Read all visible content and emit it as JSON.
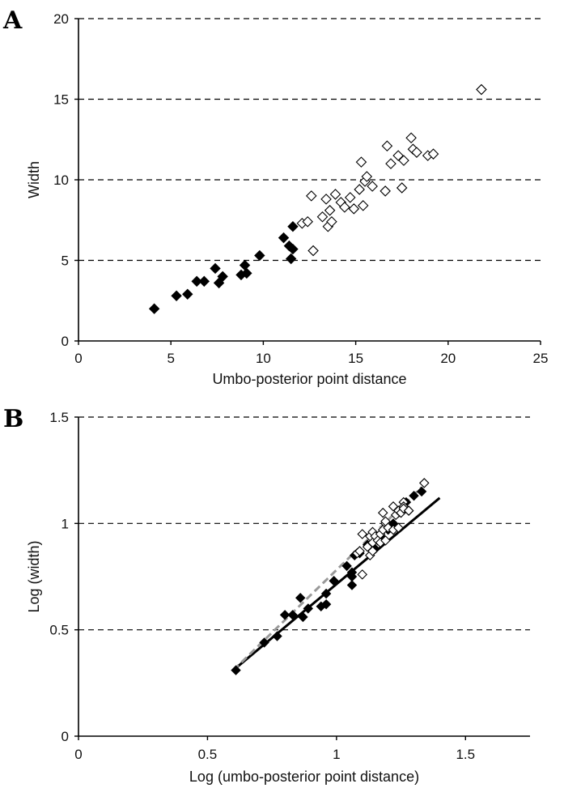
{
  "panels": {
    "a_letter": "A",
    "b_letter": "B"
  },
  "colors": {
    "filled": "#000000",
    "open": "#ffffff",
    "grid": "#000000",
    "fit_solid": "#000000",
    "fit_dashed": "#999999"
  },
  "chart_data": [
    {
      "type": "scatter",
      "panel": "A",
      "xlabel": "Umbo-posterior point distance",
      "ylabel": "Width",
      "xlim": [
        0,
        25
      ],
      "ylim": [
        0,
        20
      ],
      "xticks": [
        0,
        5,
        10,
        15,
        20,
        25
      ],
      "yticks": [
        0,
        5,
        10,
        15,
        20
      ],
      "grid": "horizontal dashed",
      "series": [
        {
          "marker": "filled-diamond",
          "points": [
            [
              4.1,
              2.0
            ],
            [
              5.3,
              2.8
            ],
            [
              5.9,
              2.9
            ],
            [
              6.4,
              3.7
            ],
            [
              6.8,
              3.7
            ],
            [
              7.4,
              4.5
            ],
            [
              7.6,
              3.6
            ],
            [
              7.8,
              4.0
            ],
            [
              8.8,
              4.1
            ],
            [
              9.0,
              4.7
            ],
            [
              9.1,
              4.2
            ],
            [
              9.8,
              5.3
            ],
            [
              11.1,
              6.4
            ],
            [
              11.4,
              5.9
            ],
            [
              11.5,
              5.1
            ],
            [
              11.6,
              5.7
            ],
            [
              11.6,
              7.1
            ]
          ]
        },
        {
          "marker": "open-diamond",
          "points": [
            [
              12.1,
              7.3
            ],
            [
              12.4,
              7.4
            ],
            [
              12.6,
              9.0
            ],
            [
              12.7,
              5.6
            ],
            [
              13.2,
              7.7
            ],
            [
              13.4,
              8.8
            ],
            [
              13.5,
              7.1
            ],
            [
              13.6,
              8.1
            ],
            [
              13.7,
              7.4
            ],
            [
              13.9,
              9.1
            ],
            [
              14.2,
              8.6
            ],
            [
              14.4,
              8.3
            ],
            [
              14.7,
              8.9
            ],
            [
              14.9,
              8.2
            ],
            [
              15.2,
              9.4
            ],
            [
              15.3,
              11.1
            ],
            [
              15.4,
              8.4
            ],
            [
              15.5,
              9.9
            ],
            [
              15.6,
              10.2
            ],
            [
              15.9,
              9.6
            ],
            [
              16.6,
              9.3
            ],
            [
              16.7,
              12.1
            ],
            [
              16.9,
              11.0
            ],
            [
              17.3,
              11.5
            ],
            [
              17.5,
              9.5
            ],
            [
              17.6,
              11.2
            ],
            [
              18.0,
              12.6
            ],
            [
              18.1,
              11.9
            ],
            [
              18.3,
              11.7
            ],
            [
              18.9,
              11.5
            ],
            [
              19.2,
              11.6
            ],
            [
              21.8,
              15.6
            ]
          ]
        }
      ]
    },
    {
      "type": "scatter",
      "panel": "B",
      "xlabel": "Log (umbo-posterior point distance)",
      "ylabel": "Log (width)",
      "xlim": [
        0,
        1.75
      ],
      "ylim": [
        0,
        1.5
      ],
      "xticks": [
        "0",
        "0.5",
        "1",
        "1.5"
      ],
      "yticks": [
        "0",
        "0.5",
        "1",
        "1.5"
      ],
      "grid": "horizontal dashed",
      "series": [
        {
          "marker": "filled-diamond",
          "points": [
            [
              0.61,
              0.31
            ],
            [
              0.72,
              0.44
            ],
            [
              0.77,
              0.47
            ],
            [
              0.8,
              0.57
            ],
            [
              0.83,
              0.57
            ],
            [
              0.86,
              0.65
            ],
            [
              0.87,
              0.56
            ],
            [
              0.89,
              0.6
            ],
            [
              0.94,
              0.61
            ],
            [
              0.96,
              0.67
            ],
            [
              0.96,
              0.62
            ],
            [
              0.99,
              0.73
            ],
            [
              1.04,
              0.8
            ],
            [
              1.06,
              0.77
            ],
            [
              1.06,
              0.71
            ],
            [
              1.06,
              0.75
            ],
            [
              1.07,
              0.85
            ],
            [
              1.09,
              0.86
            ],
            [
              1.12,
              0.9
            ],
            [
              1.15,
              0.88
            ],
            [
              1.18,
              0.93
            ],
            [
              1.2,
              0.97
            ],
            [
              1.22,
              1.0
            ],
            [
              1.24,
              1.05
            ],
            [
              1.27,
              1.1
            ],
            [
              1.3,
              1.13
            ],
            [
              1.33,
              1.15
            ]
          ]
        },
        {
          "marker": "open-diamond",
          "points": [
            [
              1.08,
              0.86
            ],
            [
              1.09,
              0.87
            ],
            [
              1.1,
              0.95
            ],
            [
              1.1,
              0.76
            ],
            [
              1.12,
              0.89
            ],
            [
              1.13,
              0.94
            ],
            [
              1.13,
              0.85
            ],
            [
              1.14,
              0.91
            ],
            [
              1.14,
              0.87
            ],
            [
              1.14,
              0.96
            ],
            [
              1.15,
              0.94
            ],
            [
              1.16,
              0.92
            ],
            [
              1.17,
              0.95
            ],
            [
              1.17,
              0.91
            ],
            [
              1.18,
              0.97
            ],
            [
              1.18,
              1.05
            ],
            [
              1.19,
              0.92
            ],
            [
              1.19,
              1.0
            ],
            [
              1.19,
              1.01
            ],
            [
              1.2,
              0.98
            ],
            [
              1.22,
              0.97
            ],
            [
              1.22,
              1.08
            ],
            [
              1.23,
              1.04
            ],
            [
              1.24,
              1.06
            ],
            [
              1.24,
              0.98
            ],
            [
              1.25,
              1.05
            ],
            [
              1.26,
              1.1
            ],
            [
              1.26,
              1.08
            ],
            [
              1.26,
              1.07
            ],
            [
              1.28,
              1.06
            ],
            [
              1.28,
              1.06
            ],
            [
              1.34,
              1.19
            ]
          ]
        }
      ],
      "fit_lines": [
        {
          "style": "solid",
          "from": [
            0.6,
            0.31
          ],
          "to": [
            1.4,
            1.12
          ]
        },
        {
          "style": "dashed-grey",
          "from": [
            0.6,
            0.31
          ],
          "to": [
            1.33,
            1.17
          ]
        }
      ]
    }
  ]
}
